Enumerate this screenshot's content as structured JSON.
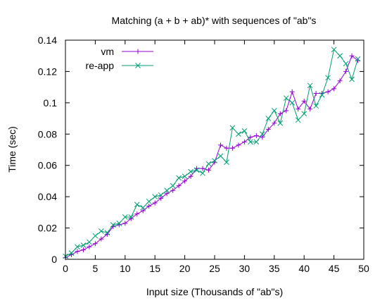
{
  "chart_data": {
    "type": "line",
    "title": "Matching (a + b + ab)* with sequences of \"ab\"s",
    "xlabel": "Input size (Thousands of \"ab\"s)",
    "ylabel": "Time (sec)",
    "xlim": [
      0,
      50
    ],
    "ylim": [
      0,
      0.14
    ],
    "xticks": [
      0,
      5,
      10,
      15,
      20,
      25,
      30,
      35,
      40,
      45,
      50
    ],
    "yticks": [
      0,
      0.02,
      0.04,
      0.06,
      0.08,
      0.1,
      0.12,
      0.14
    ],
    "xtick_labels": [
      "0",
      "5",
      "10",
      "15",
      "20",
      "25",
      "30",
      "35",
      "40",
      "45",
      "50"
    ],
    "ytick_labels": [
      "0",
      "0.02",
      "0.04",
      "0.06",
      "0.08",
      "0.1",
      "0.12",
      "0.14"
    ],
    "grid": false,
    "legend_position": "top-left",
    "x": [
      0,
      1,
      2,
      3,
      4,
      5,
      6,
      7,
      8,
      9,
      10,
      11,
      12,
      13,
      14,
      15,
      16,
      17,
      18,
      19,
      20,
      21,
      22,
      23,
      24,
      25,
      26,
      27,
      28,
      29,
      30,
      31,
      32,
      33,
      34,
      35,
      36,
      37,
      38,
      39,
      40,
      41,
      42,
      43,
      44,
      45,
      46,
      47,
      48,
      49
    ],
    "series": [
      {
        "name": "vm",
        "color": "#9400d3",
        "marker": "plus",
        "values": [
          0.001,
          0.003,
          0.005,
          0.006,
          0.008,
          0.01,
          0.013,
          0.016,
          0.021,
          0.022,
          0.023,
          0.026,
          0.029,
          0.031,
          0.034,
          0.036,
          0.039,
          0.042,
          0.044,
          0.047,
          0.05,
          0.053,
          0.058,
          0.058,
          0.057,
          0.062,
          0.073,
          0.071,
          0.071,
          0.073,
          0.075,
          0.078,
          0.079,
          0.078,
          0.083,
          0.087,
          0.093,
          0.095,
          0.107,
          0.096,
          0.101,
          0.096,
          0.106,
          0.106,
          0.107,
          0.109,
          0.114,
          0.12,
          0.13,
          0.127
        ]
      },
      {
        "name": "re-app",
        "color": "#009e73",
        "marker": "cross",
        "values": [
          0.002,
          0.004,
          0.008,
          0.009,
          0.011,
          0.015,
          0.018,
          0.017,
          0.022,
          0.023,
          0.027,
          0.027,
          0.035,
          0.033,
          0.037,
          0.04,
          0.041,
          0.044,
          0.047,
          0.052,
          0.053,
          0.056,
          0.057,
          0.055,
          0.061,
          0.063,
          0.066,
          0.062,
          0.084,
          0.08,
          0.082,
          0.075,
          0.075,
          0.08,
          0.09,
          0.095,
          0.087,
          0.103,
          0.1,
          0.089,
          0.093,
          0.111,
          0.098,
          0.105,
          0.116,
          0.134,
          0.13,
          0.125,
          0.115,
          0.128
        ]
      }
    ]
  }
}
